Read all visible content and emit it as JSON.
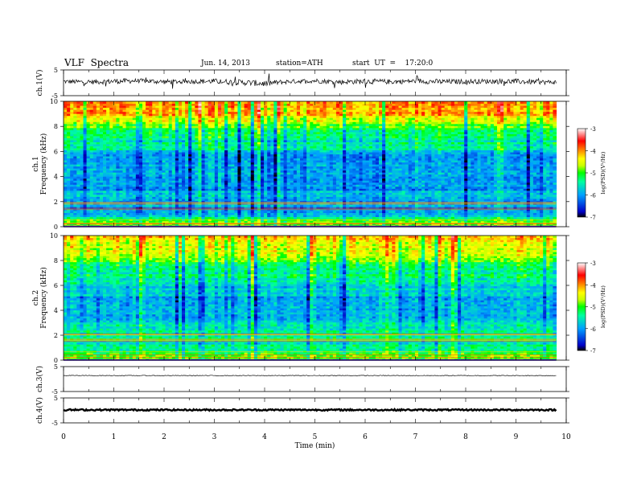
{
  "header": {
    "title": "VLF  Spectra",
    "date": "Jun. 14, 2013",
    "station": "station=ATH",
    "start": "start  UT  =    17:20:0"
  },
  "colors": {
    "colormap": [
      "#000000",
      "#0000c8",
      "#00a0ff",
      "#00ffa0",
      "#00ff00",
      "#c8ff00",
      "#ffff00",
      "#ff8000",
      "#ff0000",
      "#ffffff"
    ],
    "trace": "#000000"
  },
  "chart_data": [
    {
      "type": "line",
      "panel": "ch1-waveform",
      "ylabel": "ch.1(V)",
      "ylim": [
        -5,
        5
      ],
      "yticks": [
        "5",
        "-5"
      ],
      "xlim": [
        0,
        10
      ],
      "x": [
        0,
        0.5,
        1,
        1.5,
        2,
        2.5,
        3,
        3.5,
        4,
        4.5,
        5,
        5.5,
        6,
        6.5,
        7,
        7.5,
        8,
        8.5,
        9,
        9.5,
        9.8
      ],
      "y_mean": [
        0.5,
        0.3,
        0.6,
        0.8,
        0.4,
        0.5,
        0.6,
        0.2,
        -0.3,
        0.5,
        0.8,
        0.3,
        0.6,
        0.4,
        0.7,
        0.4,
        0.5,
        0.6,
        0.5,
        0.3,
        0.2
      ],
      "y_spread": [
        1.2,
        1.3,
        1.6,
        1.2,
        1.4,
        1.2,
        1.5,
        1.6,
        1.8,
        1.2,
        1.3,
        1.4,
        1.5,
        1.4,
        1.3,
        1.5,
        1.3,
        1.4,
        1.5,
        1.3,
        1.2
      ]
    },
    {
      "type": "heatmap",
      "panel": "ch1-spectrogram",
      "ylabel": "ch.1\nFrequency  (kHz)",
      "ylim": [
        0,
        10
      ],
      "yticks": [
        "0",
        "2",
        "4",
        "6",
        "8",
        "10"
      ],
      "xlim": [
        0,
        10
      ],
      "data_end_min": 9.8,
      "colorbar": {
        "label": "log(PSD)(V²/Hz)",
        "ticks": [
          "-3",
          "-4",
          "-5",
          "-6",
          "-7"
        ],
        "range": [
          -7,
          -3
        ]
      },
      "freq_kHz": [
        0,
        0.5,
        1,
        1.5,
        2,
        2.5,
        3,
        3.5,
        4,
        4.5,
        5,
        5.5,
        6,
        6.5,
        7,
        7.5,
        8,
        8.5,
        9,
        9.5,
        10
      ],
      "mean_logpsd": [
        -4.6,
        -5.0,
        -5.9,
        -6.1,
        -5.9,
        -5.6,
        -6.0,
        -6.0,
        -5.9,
        -5.8,
        -5.9,
        -6.0,
        -5.7,
        -5.5,
        -5.4,
        -5.2,
        -4.9,
        -4.5,
        -4.1,
        -3.9,
        -3.8
      ]
    },
    {
      "type": "heatmap",
      "panel": "ch2-spectrogram",
      "ylabel": "ch.2\nFrequency  (kHz)",
      "ylim": [
        0,
        10
      ],
      "yticks": [
        "0",
        "2",
        "4",
        "6",
        "8",
        "10"
      ],
      "xlim": [
        0,
        10
      ],
      "data_end_min": 9.8,
      "colorbar": {
        "label": "log(PSD)(V²/Hz)",
        "ticks": [
          "-3",
          "-4",
          "-5",
          "-6",
          "-7"
        ],
        "range": [
          -7,
          -3
        ]
      },
      "freq_kHz": [
        0,
        0.5,
        1,
        1.5,
        2,
        2.5,
        3,
        3.5,
        4,
        4.5,
        5,
        5.5,
        6,
        6.5,
        7,
        7.5,
        8,
        8.5,
        9,
        9.5,
        10
      ],
      "mean_logpsd": [
        -4.8,
        -5.1,
        -5.5,
        -5.4,
        -5.3,
        -5.4,
        -5.7,
        -5.8,
        -5.8,
        -5.7,
        -5.8,
        -5.8,
        -5.6,
        -5.4,
        -5.3,
        -5.1,
        -4.9,
        -4.6,
        -4.4,
        -4.3,
        -4.2
      ]
    },
    {
      "type": "line",
      "panel": "ch3-waveform",
      "ylabel": "ch.3(V)",
      "ylim": [
        -5,
        5
      ],
      "yticks": [
        "5",
        "-5"
      ],
      "xlim": [
        0,
        10
      ],
      "x": [
        0,
        9.8
      ],
      "y": [
        1.4,
        1.4
      ]
    },
    {
      "type": "line",
      "panel": "ch4-waveform",
      "ylabel": "ch.4(V)",
      "ylim": [
        -5,
        5
      ],
      "yticks": [
        "5",
        "-5"
      ],
      "xlim": [
        0,
        10
      ],
      "x": [
        0,
        9.8
      ],
      "y": [
        0.2,
        0.2
      ]
    }
  ],
  "xaxis": {
    "label": "Time  (min)",
    "ticks": [
      "0",
      "1",
      "2",
      "3",
      "4",
      "5",
      "6",
      "7",
      "8",
      "9",
      "10"
    ]
  }
}
